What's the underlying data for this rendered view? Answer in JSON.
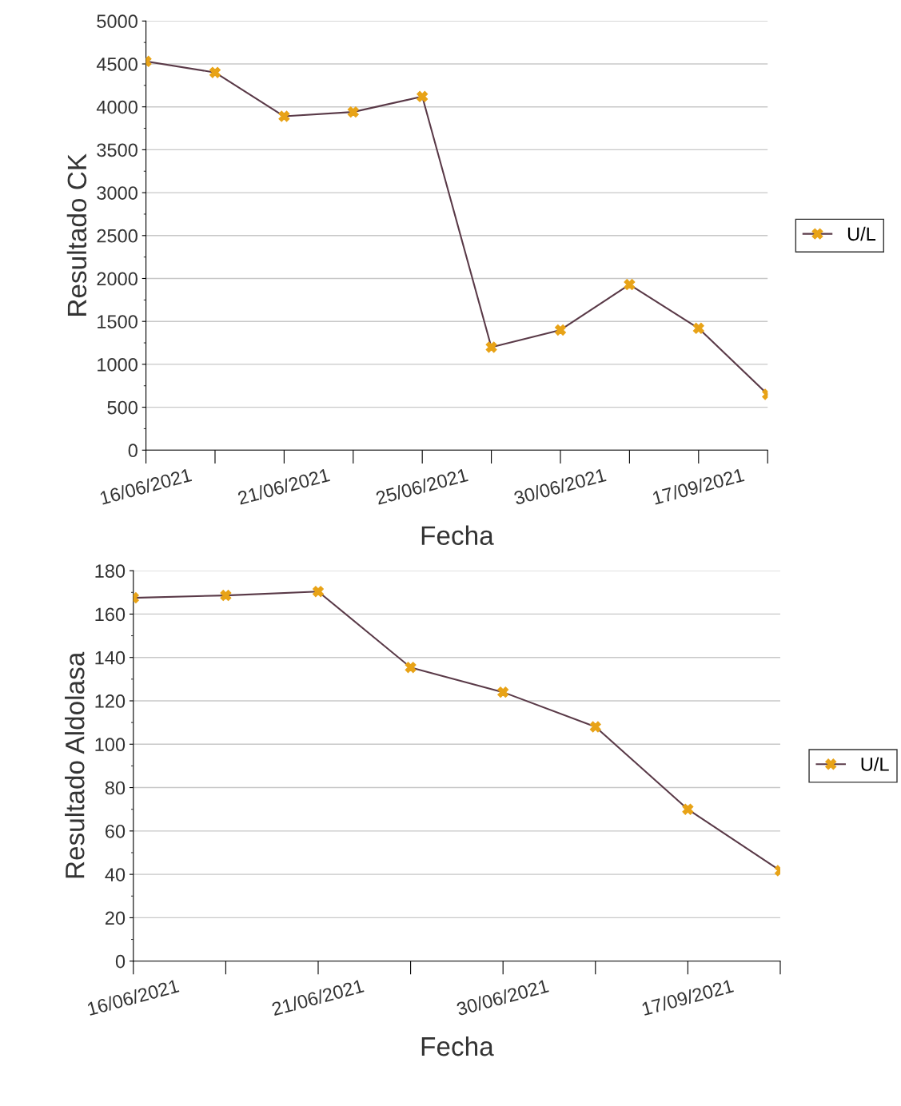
{
  "chart_data": [
    {
      "type": "line",
      "xlabel": "Fecha",
      "ylabel": "Resultado CK",
      "categories": [
        "16/06/2021",
        null,
        "21/06/2021",
        null,
        "25/06/2021",
        null,
        "30/06/2021",
        null,
        "17/09/2021",
        null
      ],
      "series": [
        {
          "name": "U/L",
          "color": "#e8a317",
          "values": [
            4530,
            4400,
            3890,
            3940,
            4120,
            1200,
            1400,
            1930,
            1420,
            650
          ]
        }
      ],
      "ylim": [
        0,
        5000
      ],
      "yticks": [
        0,
        500,
        1000,
        1500,
        2000,
        2500,
        3000,
        3500,
        4000,
        4500,
        5000
      ],
      "grid": "y",
      "legend": "right",
      "marker": "cross",
      "line_style": "solid"
    },
    {
      "type": "line",
      "xlabel": "Fecha",
      "ylabel": "Resultado Aldolasa",
      "categories": [
        "16/06/2021",
        null,
        "21/06/2021",
        null,
        "30/06/2021",
        null,
        "17/09/2021",
        null
      ],
      "series": [
        {
          "name": "U/L",
          "color": "#e8a317",
          "values": [
            167.5,
            168.6,
            170.4,
            135.4,
            124,
            108,
            70,
            41.7
          ]
        }
      ],
      "ylim": [
        0,
        180
      ],
      "yticks": [
        0,
        20,
        40,
        60,
        80,
        100,
        120,
        140,
        160,
        180
      ],
      "grid": "y",
      "legend": "right",
      "marker": "cross",
      "line_style": "solid"
    }
  ]
}
